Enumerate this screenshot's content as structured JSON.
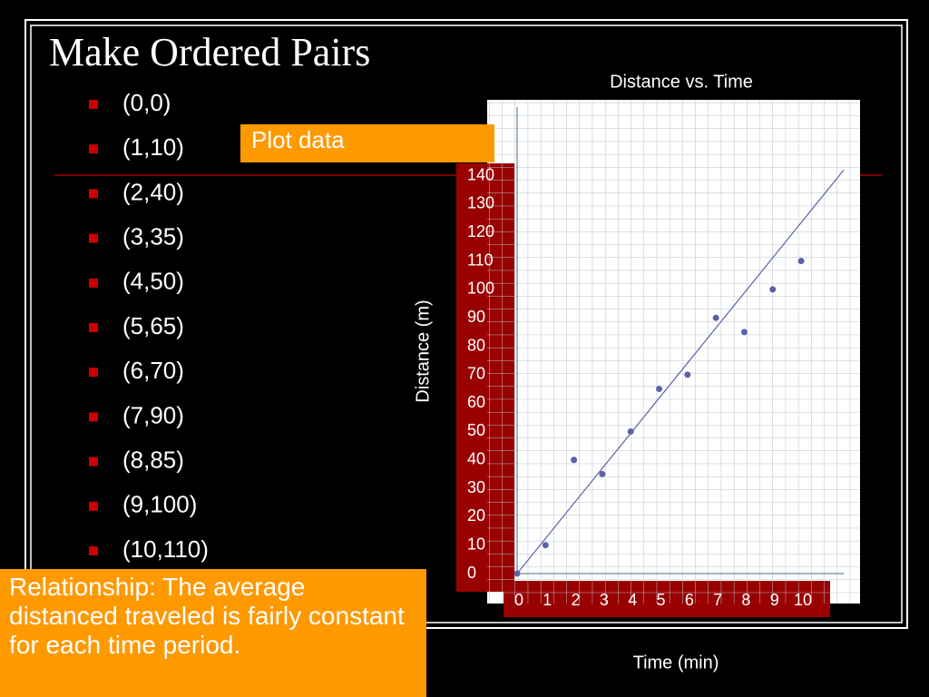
{
  "title": "Make Ordered Pairs",
  "bullets": [
    "(0,0)",
    "(1,10)",
    "(2,40)",
    "(3,35)",
    "(4,50)",
    "(5,65)",
    "(6,70)",
    "(7,90)",
    "(8,85)",
    "(9,100)",
    "(10,110)"
  ],
  "callout": "Plot data",
  "relationship": "Relationship: The average distanced traveled is fairly constant for each time period.",
  "chart_data": {
    "type": "scatter",
    "title": "Distance vs. Time",
    "xlabel": "Time (min)",
    "ylabel": "Distance (m)",
    "x": [
      0,
      1,
      2,
      3,
      4,
      5,
      6,
      7,
      8,
      9,
      10
    ],
    "values": [
      0,
      10,
      40,
      35,
      50,
      65,
      70,
      90,
      85,
      100,
      110
    ],
    "color": "#5c62a8",
    "trendline": {
      "x": [
        0,
        11.5
      ],
      "values": [
        0,
        142
      ],
      "color": "#5c62a8"
    },
    "xlim": [
      0,
      11.5
    ],
    "ylim": [
      0,
      160
    ],
    "xticks": [
      0,
      1,
      2,
      3,
      4,
      5,
      6,
      7,
      8,
      9,
      10
    ],
    "yticks": [
      0,
      10,
      20,
      30,
      40,
      50,
      60,
      70,
      80,
      90,
      100,
      110,
      120,
      130,
      140
    ],
    "grid": true
  }
}
